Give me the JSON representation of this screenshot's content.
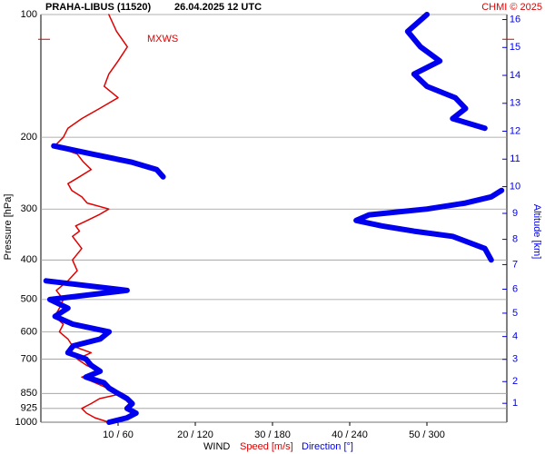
{
  "chart_data": {
    "type": "line",
    "title": "PRAHA-LIBUS (11520)",
    "subtitle": "26.04.2025 12 UTC",
    "credit": "CHMI © 2025",
    "y_label": "Pressure [hPa]",
    "y2_label": "Altitude [km]",
    "x_label": "WIND",
    "x_label_speed": "Speed [m/s]",
    "x_label_direction": "Direction [°]",
    "log_y": true,
    "grid": true,
    "pressure": [
      1000,
      975,
      950,
      925,
      900,
      875,
      850,
      825,
      800,
      775,
      750,
      725,
      700,
      675,
      650,
      625,
      600,
      575,
      550,
      525,
      500,
      475,
      450,
      425,
      400,
      375,
      350,
      340,
      330,
      320,
      310,
      300,
      290,
      280,
      270,
      260,
      250,
      240,
      230,
      220,
      210,
      200,
      190,
      180,
      170,
      160,
      150,
      140,
      130,
      120,
      110,
      100
    ],
    "ylim": [
      1000,
      100
    ],
    "yticks": [
      100,
      200,
      300,
      400,
      500,
      600,
      700,
      850,
      925,
      1000
    ],
    "xlim": [
      0,
      60
    ],
    "x2lim": [
      0,
      360
    ],
    "xticks": [
      {
        "value": 10,
        "label": "10 / 60"
      },
      {
        "value": 20,
        "label": "20 / 120"
      },
      {
        "value": 30,
        "label": "30 / 180"
      },
      {
        "value": 40,
        "label": "40 / 240"
      },
      {
        "value": 50,
        "label": "50 / 300"
      }
    ],
    "altitude_ticks": [
      1,
      2,
      3,
      4,
      5,
      6,
      7,
      8,
      9,
      10,
      11,
      12,
      13,
      14,
      15,
      16
    ],
    "altitude_color": "#0000ee",
    "series": [
      {
        "name": "Speed",
        "color": "#e00000",
        "width": 1.5,
        "values": [
          8.8,
          7,
          5.9,
          5.3,
          6.5,
          7.6,
          10.6,
          8.6,
          7,
          5.3,
          7.6,
          5.9,
          4.7,
          6.5,
          4.1,
          3.5,
          2.4,
          2.9,
          1.8,
          2.4,
          2.9,
          2,
          3.5,
          4.7,
          4.1,
          5.3,
          4.1,
          5,
          4.5,
          6,
          7.5,
          8.8,
          6,
          5.3,
          4,
          3.5,
          5,
          6.5,
          5.5,
          4.7,
          1.8,
          2.9,
          3.5,
          5.3,
          7.6,
          10,
          8.2,
          8.8,
          10,
          11.2,
          9.8,
          8.8
        ]
      },
      {
        "name": "Direction",
        "color": "#0000ee",
        "width": 6,
        "axis": "x2",
        "values": [
          53,
          67,
          74,
          67,
          71,
          67,
          60,
          53,
          49,
          35,
          46,
          39,
          35,
          21,
          25,
          46,
          53,
          25,
          11,
          21,
          7,
          67,
          4,
          null,
          350,
          345,
          320,
          290,
          265,
          245,
          255,
          300,
          330,
          350,
          358,
          null,
          95,
          90,
          70,
          40,
          10,
          null,
          345,
          320,
          330,
          322,
          300,
          290,
          310,
          295,
          285,
          300
        ]
      }
    ],
    "annotations": [
      {
        "text": "MXWS",
        "pressure": 115,
        "color": "#e00000"
      }
    ]
  }
}
